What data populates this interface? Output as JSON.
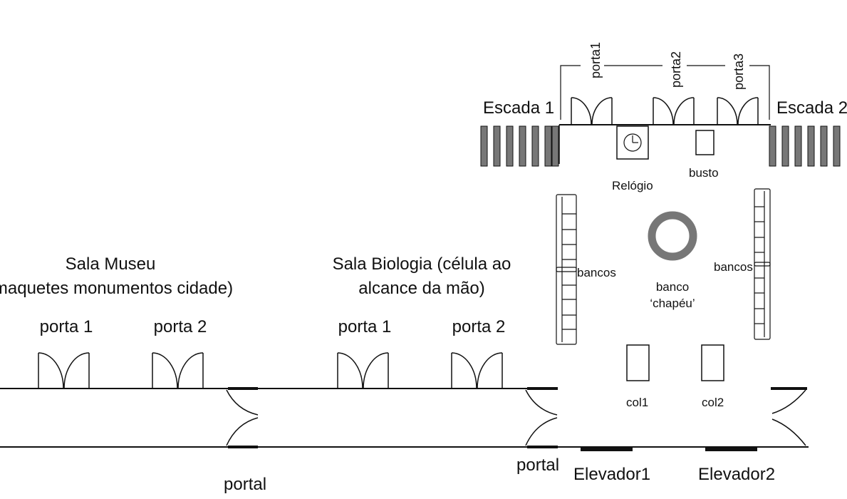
{
  "colors": {
    "ink": "#111111",
    "stair": "#777777",
    "ring": "#777777",
    "background": "#ffffff"
  },
  "labels": {
    "escada1": "Escada 1",
    "escada2": "Escada 2",
    "porta1_top": "porta1",
    "porta2_top": "porta2",
    "porta3_top": "porta3",
    "relogio": "Relógio",
    "busto": "busto",
    "bancos_left": "bancos",
    "bancos_right": "bancos",
    "banco_line1": "banco",
    "banco_line2": "‘chapéu’",
    "col1": "col1",
    "col2": "col2",
    "elevador1": "Elevador1",
    "elevador2": "Elevador2",
    "portal_right": "portal",
    "portal_left": "portal",
    "sala_museu_line1": "Sala Museu",
    "sala_museu_line2": "(maquetes monumentos cidade)",
    "museu_porta1": "porta 1",
    "museu_porta2": "porta 2",
    "sala_bio_line1": "Sala Biologia (célula ao",
    "sala_bio_line2": "alcance da mão)",
    "bio_porta1": "porta 1",
    "bio_porta2": "porta 2"
  },
  "icons": [
    "double-door-icon",
    "clock-icon",
    "bust-icon",
    "stair-icon",
    "bench-icon",
    "ring-bench-icon",
    "column-icon",
    "elevator-icon",
    "portal-icon"
  ]
}
